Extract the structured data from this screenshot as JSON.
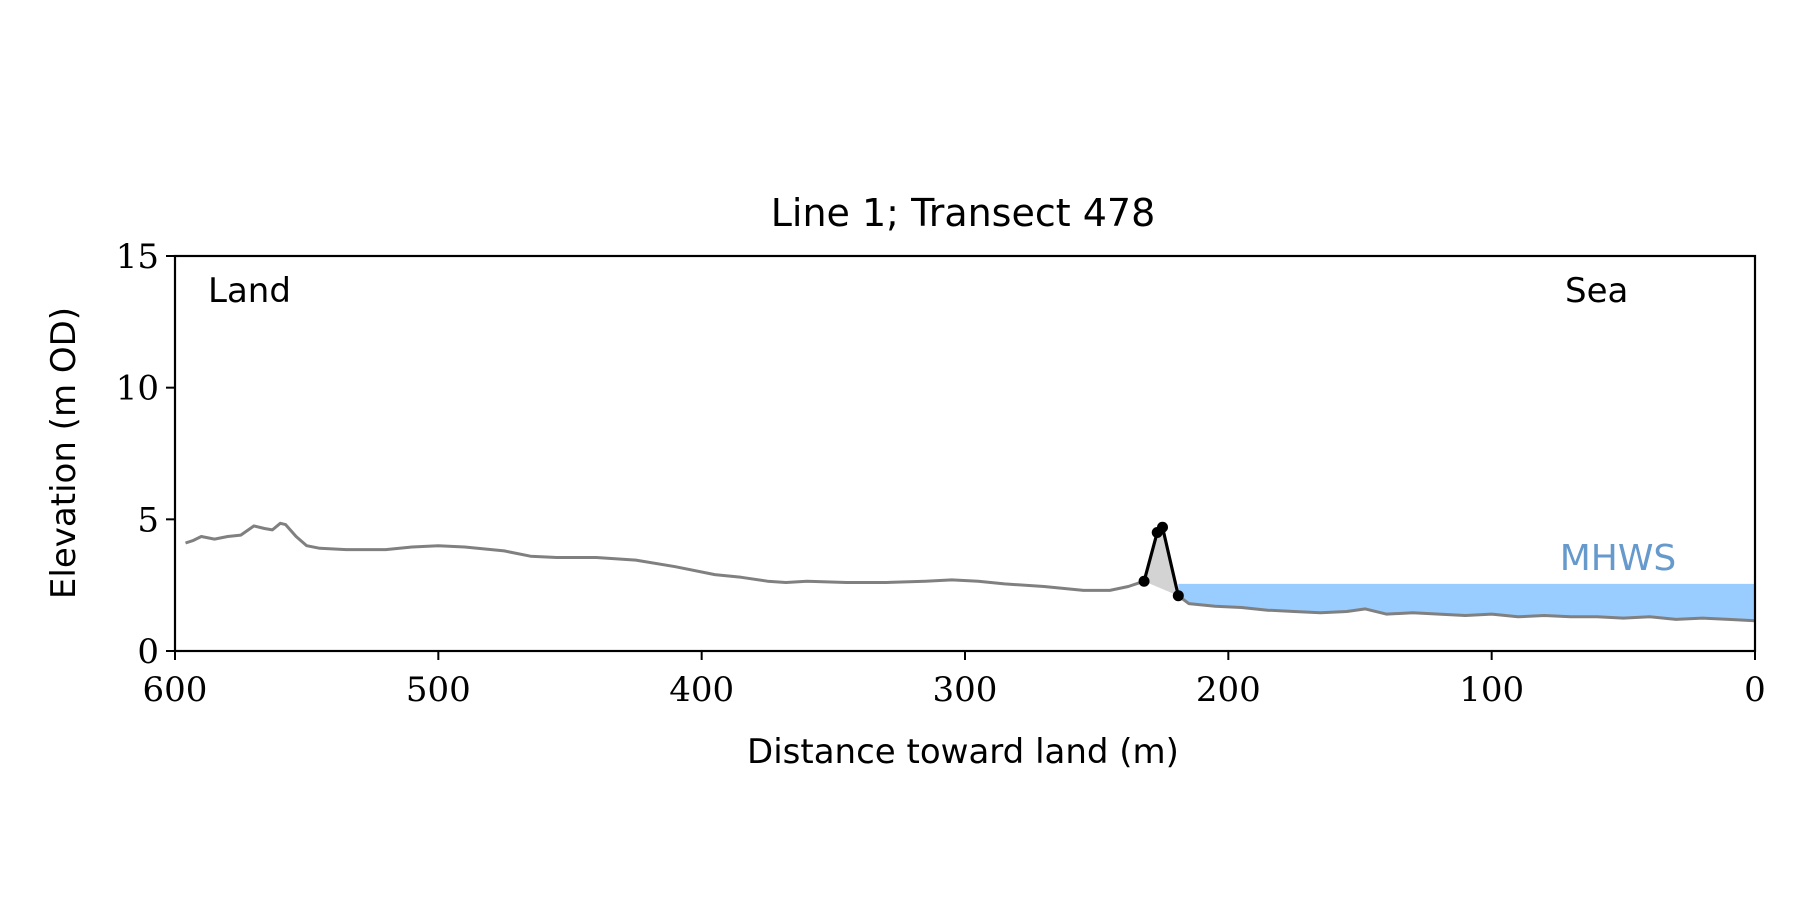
{
  "chart_data": {
    "type": "line",
    "title": "Line 1; Transect 478",
    "xlabel": "Distance toward land (m)",
    "ylabel": "Elevation (m OD)",
    "xlim": [
      600,
      0
    ],
    "ylim": [
      0,
      15
    ],
    "x_reversed": true,
    "xticks": [
      600,
      500,
      400,
      300,
      200,
      100,
      0
    ],
    "yticks": [
      0,
      5,
      10,
      15
    ],
    "grid": false,
    "annotations": {
      "land": "Land",
      "sea": "Sea",
      "mhws": "MHWS"
    },
    "mhws_level": 2.55,
    "mhws_x_range": [
      218,
      0
    ],
    "colors": {
      "profile": "#808080",
      "dune": "#000000",
      "dune_fill": "#d3d3d3",
      "mhws_fill": "#99ccff",
      "mhws_text": "#6699cc"
    },
    "profile": {
      "x": [
        596,
        593,
        590,
        585,
        580,
        575,
        570,
        566,
        563,
        560,
        558,
        554,
        550,
        545,
        535,
        520,
        510,
        500,
        490,
        475,
        465,
        455,
        440,
        425,
        410,
        395,
        385,
        375,
        368,
        360,
        345,
        330,
        315,
        305,
        295,
        285,
        270,
        255,
        245,
        238,
        232
      ],
      "y": [
        4.1,
        4.2,
        4.35,
        4.25,
        4.35,
        4.4,
        4.75,
        4.65,
        4.6,
        4.85,
        4.8,
        4.35,
        4.0,
        3.9,
        3.85,
        3.85,
        3.95,
        4.0,
        3.95,
        3.8,
        3.6,
        3.55,
        3.55,
        3.45,
        3.2,
        2.9,
        2.8,
        2.65,
        2.6,
        2.65,
        2.6,
        2.6,
        2.65,
        2.7,
        2.65,
        2.55,
        2.45,
        2.3,
        2.3,
        2.45,
        2.65
      ]
    },
    "dune": {
      "x": [
        232,
        227,
        225,
        219
      ],
      "y": [
        2.65,
        4.5,
        4.7,
        2.1
      ]
    },
    "seaward": {
      "x": [
        219,
        215,
        205,
        195,
        185,
        175,
        165,
        155,
        148,
        140,
        130,
        120,
        110,
        100,
        90,
        80,
        70,
        60,
        50,
        40,
        30,
        20,
        10,
        0
      ],
      "y": [
        2.1,
        1.8,
        1.7,
        1.65,
        1.55,
        1.5,
        1.45,
        1.5,
        1.6,
        1.4,
        1.45,
        1.4,
        1.35,
        1.4,
        1.3,
        1.35,
        1.3,
        1.3,
        1.25,
        1.3,
        1.2,
        1.25,
        1.2,
        1.15
      ]
    }
  }
}
